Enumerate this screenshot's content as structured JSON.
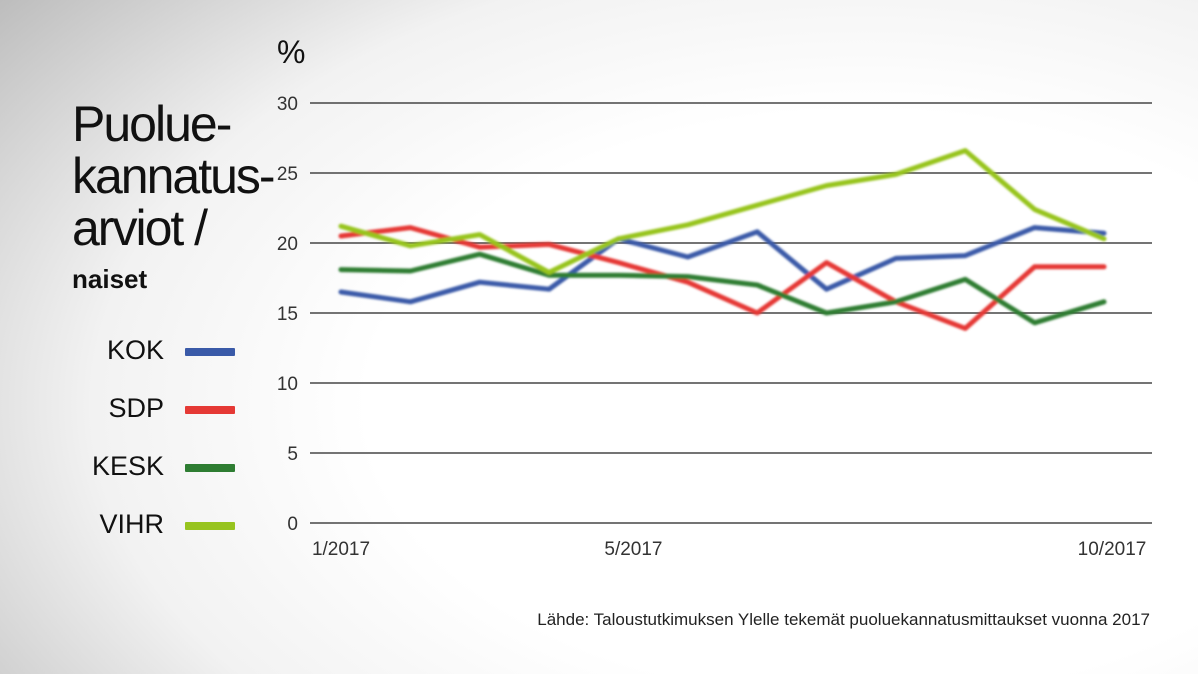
{
  "title_lines": [
    "Puolue-",
    "kannatus-",
    "arviot /"
  ],
  "subtitle": "naiset",
  "unit": "%",
  "source": "Lähde: Taloustutkimuksen Ylelle tekemät puoluekannatusmittaukset vuonna 2017",
  "legend": [
    {
      "label": "KOK",
      "color": "#3a5aa8"
    },
    {
      "label": "SDP",
      "color": "#e53935"
    },
    {
      "label": "KESK",
      "color": "#2e7d32"
    },
    {
      "label": "VIHR",
      "color": "#97c41f"
    }
  ],
  "chart_data": {
    "type": "line",
    "ylim": [
      0,
      30
    ],
    "yticks": [
      0,
      5,
      10,
      15,
      20,
      25,
      30
    ],
    "x_tick_labels": [
      "1/2017",
      "5/2017",
      "10/2017"
    ],
    "grid": true,
    "series": [
      {
        "name": "KOK",
        "color": "#3a5aa8",
        "values": [
          16.5,
          15.8,
          17.2,
          16.7,
          20.3,
          19.0,
          20.8,
          16.7,
          18.9,
          19.1,
          21.1,
          20.7
        ]
      },
      {
        "name": "SDP",
        "color": "#e53935",
        "values": [
          20.5,
          21.1,
          19.7,
          19.9,
          18.6,
          17.2,
          15.0,
          18.6,
          15.8,
          13.9,
          18.3,
          18.3
        ]
      },
      {
        "name": "KESK",
        "color": "#2e7d32",
        "values": [
          18.1,
          18.0,
          19.2,
          17.7,
          17.7,
          17.6,
          17.0,
          15.0,
          15.8,
          17.4,
          14.3,
          15.8
        ]
      },
      {
        "name": "VIHR",
        "color": "#97c41f",
        "values": [
          21.2,
          19.8,
          20.6,
          17.9,
          20.3,
          21.3,
          22.7,
          24.1,
          24.9,
          26.6,
          22.4,
          20.3
        ]
      }
    ]
  }
}
